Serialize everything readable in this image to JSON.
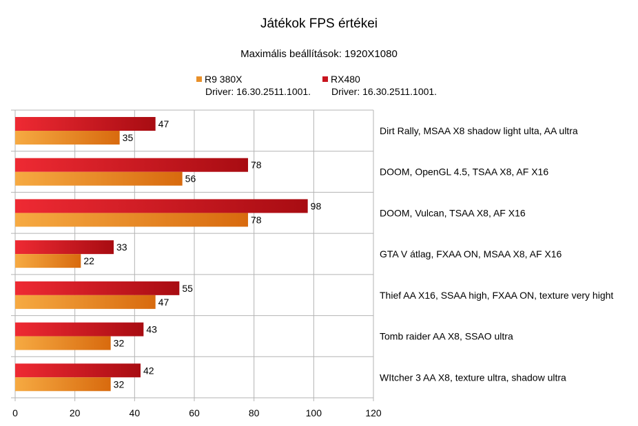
{
  "chart_data": {
    "type": "bar",
    "orientation": "horizontal",
    "title": "Játékok FPS értékei",
    "subtitle": "Maximális beállítások: 1920X1080",
    "categories": [
      "Dirt Rally, MSAA X8 shadow light ulta, AA ultra",
      "DOOM, OpenGL 4.5, TSAA X8, AF X16",
      "DOOM, Vulcan, TSAA X8, AF X16",
      "GTA V átlag, FXAA ON, MSAA X8, AF X16",
      "Thief AA X16, SSAA high, FXAA ON, texture very hight",
      "Tomb raider AA X8, SSAO ultra",
      "WItcher 3 AA X8, texture ultra, shadow ultra"
    ],
    "series": [
      {
        "name": "RX480",
        "driver": "Driver: 16.30.2511.1001.",
        "color": "#c8141e",
        "values": [
          47,
          78,
          98,
          33,
          55,
          43,
          42
        ]
      },
      {
        "name": "R9 380X",
        "driver": "Driver: 16.30.2511.1001.",
        "color": "#e8902a",
        "values": [
          35,
          56,
          78,
          22,
          47,
          32,
          32
        ]
      }
    ],
    "xlim": [
      0,
      120
    ],
    "xticks": [
      0,
      20,
      40,
      60,
      80,
      100,
      120
    ],
    "grid": true,
    "legend_position": "top"
  }
}
